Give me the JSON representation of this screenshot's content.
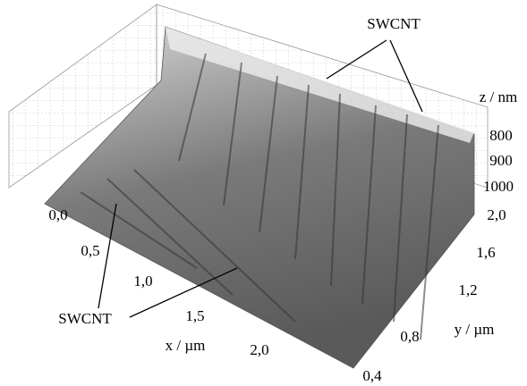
{
  "annotations": [
    "SWCNT",
    "SWCNT"
  ],
  "axes": {
    "z": {
      "label": "z / nm",
      "ticks": [
        "800",
        "900",
        "1000"
      ]
    },
    "y": {
      "label": "y / µm",
      "ticks": [
        "2,0",
        "1,6",
        "1,2",
        "0,8",
        "0,4"
      ]
    },
    "x": {
      "label": "x / µm",
      "ticks": [
        "0,0",
        "0,5",
        "1,0",
        "1,5",
        "2,0"
      ]
    }
  }
}
